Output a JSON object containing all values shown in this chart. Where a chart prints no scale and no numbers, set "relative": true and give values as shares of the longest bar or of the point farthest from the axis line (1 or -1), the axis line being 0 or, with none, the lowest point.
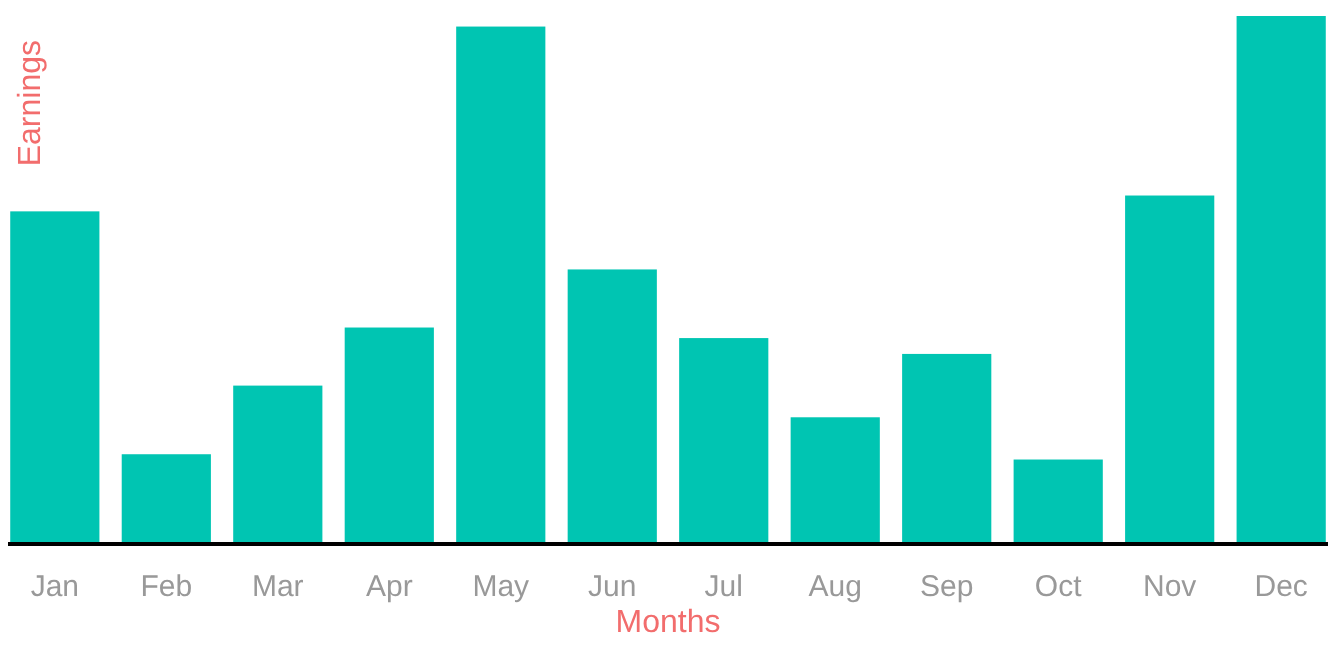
{
  "chart_data": {
    "type": "bar",
    "xlabel": "Months",
    "ylabel": "Earnings",
    "relative": true,
    "color": "#00c5b2",
    "categories": [
      "Jan",
      "Feb",
      "Mar",
      "Apr",
      "May",
      "Jun",
      "Jul",
      "Aug",
      "Sep",
      "Oct",
      "Nov",
      "Dec"
    ],
    "values": [
      0.63,
      0.17,
      0.3,
      0.41,
      0.98,
      0.52,
      0.39,
      0.24,
      0.36,
      0.16,
      0.66,
      1
    ]
  }
}
